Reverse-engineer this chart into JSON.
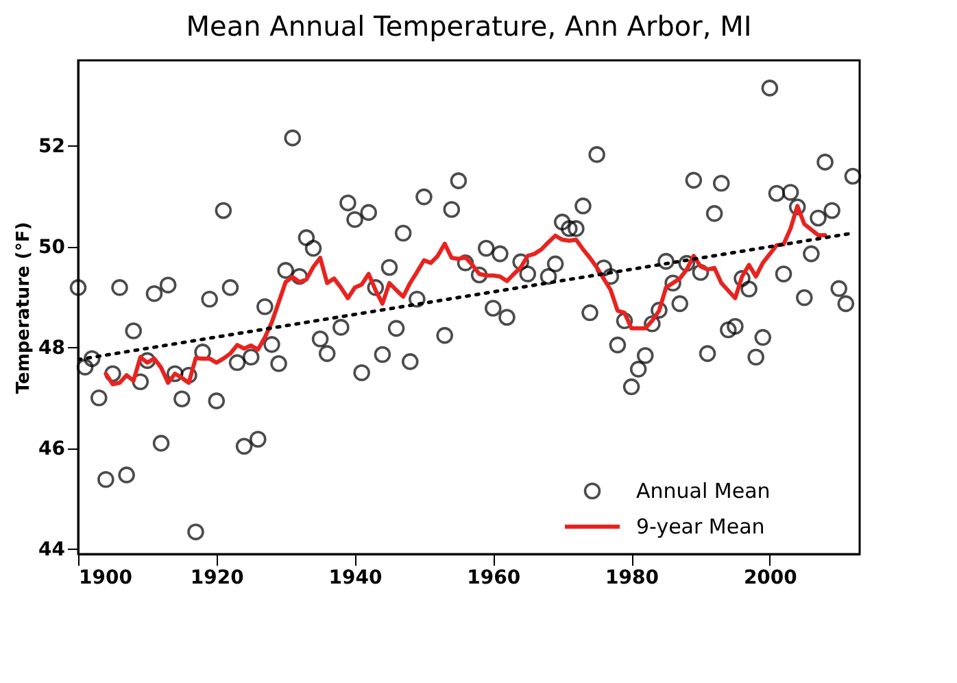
{
  "chart_data": {
    "type": "scatter",
    "title": "Mean Annual Temperature, Ann Arbor, MI",
    "ylabel": "Temperature (°F)",
    "xlim": [
      1900,
      2013
    ],
    "xticks": [
      1900,
      1920,
      1940,
      1960,
      1980,
      2000
    ],
    "ylim": [
      43.9,
      53.7
    ],
    "yticks": [
      44,
      46,
      48,
      50,
      52
    ],
    "grid": false,
    "legend": "bottom right",
    "series": [
      {
        "name": "Annual Mean",
        "marker": "circle",
        "color": "#000000",
        "x": [
          1900,
          1901,
          1902,
          1903,
          1904,
          1905,
          1906,
          1907,
          1908,
          1909,
          1910,
          1911,
          1912,
          1913,
          1914,
          1915,
          1916,
          1917,
          1918,
          1919,
          1920,
          1921,
          1922,
          1923,
          1924,
          1925,
          1926,
          1927,
          1928,
          1929,
          1930,
          1931,
          1932,
          1933,
          1934,
          1935,
          1936,
          1938,
          1939,
          1940,
          1941,
          1942,
          1943,
          1944,
          1945,
          1946,
          1947,
          1948,
          1949,
          1950,
          1953,
          1954,
          1955,
          1956,
          1958,
          1959,
          1960,
          1961,
          1962,
          1964,
          1965,
          1968,
          1969,
          1970,
          1971,
          1972,
          1973,
          1974,
          1975,
          1976,
          1977,
          1978,
          1979,
          1980,
          1981,
          1982,
          1983,
          1984,
          1985,
          1986,
          1987,
          1988,
          1989,
          1990,
          1991,
          1992,
          1993,
          1994,
          1995,
          1996,
          1997,
          1998,
          1999,
          2000,
          2001,
          2002,
          2003,
          2004,
          2005,
          2006,
          2007,
          2008,
          2009,
          2010,
          2011,
          2012
        ],
        "values": [
          49.19,
          47.61,
          47.78,
          47.0,
          45.38,
          47.48,
          49.19,
          45.47,
          48.33,
          47.32,
          47.74,
          49.07,
          46.1,
          49.24,
          47.48,
          46.98,
          47.45,
          44.34,
          47.91,
          48.96,
          46.94,
          50.72,
          49.19,
          47.7,
          46.04,
          47.81,
          46.18,
          48.81,
          48.06,
          47.68,
          49.53,
          52.16,
          49.41,
          50.18,
          49.97,
          48.17,
          47.88,
          48.4,
          50.87,
          50.54,
          47.5,
          50.68,
          49.19,
          47.86,
          49.59,
          48.38,
          50.27,
          47.72,
          48.96,
          50.99,
          48.24,
          50.74,
          51.31,
          49.68,
          49.44,
          49.97,
          48.78,
          49.86,
          48.6,
          49.7,
          49.46,
          49.41,
          49.66,
          50.49,
          50.36,
          50.36,
          50.81,
          48.69,
          51.83,
          49.58,
          49.41,
          48.05,
          48.53,
          47.22,
          47.57,
          47.84,
          48.47,
          48.74,
          49.71,
          49.28,
          48.87,
          49.67,
          51.32,
          49.49,
          47.88,
          50.66,
          51.26,
          48.35,
          48.42,
          49.37,
          49.16,
          47.81,
          48.2,
          53.15,
          51.06,
          49.46,
          51.08,
          50.79,
          48.99,
          49.86,
          50.57,
          51.68,
          50.72,
          49.17,
          48.87,
          51.4
        ]
      },
      {
        "name": "9-year Mean",
        "type": "line",
        "line_style": "solid",
        "color": "#e8231f",
        "x": [
          1904,
          1905,
          1906,
          1907,
          1908,
          1909,
          1910,
          1911,
          1912,
          1913,
          1914,
          1915,
          1916,
          1917,
          1918,
          1919,
          1920,
          1921,
          1922,
          1923,
          1924,
          1925,
          1926,
          1927,
          1928,
          1929,
          1930,
          1931,
          1932,
          1933,
          1934,
          1935,
          1936,
          1937,
          1938,
          1939,
          1940,
          1941,
          1942,
          1943,
          1944,
          1945,
          1946,
          1947,
          1948,
          1949,
          1950,
          1951,
          1952,
          1953,
          1954,
          1955,
          1956,
          1957,
          1958,
          1959,
          1960,
          1961,
          1962,
          1963,
          1964,
          1965,
          1966,
          1967,
          1968,
          1969,
          1970,
          1971,
          1972,
          1973,
          1974,
          1975,
          1977,
          1978,
          1979,
          1980,
          1981,
          1982,
          1983,
          1984,
          1985,
          1987,
          1988,
          1989,
          1990,
          1991,
          1992,
          1993,
          1995,
          1996,
          1997,
          1998,
          1999,
          2001,
          2002,
          2003,
          2004,
          2005,
          2007,
          2008
        ],
        "values": [
          47.48,
          47.27,
          47.3,
          47.45,
          47.34,
          47.81,
          47.7,
          47.78,
          47.6,
          47.3,
          47.48,
          47.4,
          47.3,
          47.79,
          47.78,
          47.78,
          47.7,
          47.78,
          47.88,
          48.05,
          47.98,
          48.04,
          47.96,
          48.2,
          48.5,
          48.9,
          49.3,
          49.4,
          49.3,
          49.35,
          49.6,
          49.78,
          49.28,
          49.37,
          49.19,
          48.98,
          49.19,
          49.25,
          49.46,
          49.14,
          48.87,
          49.28,
          49.14,
          49.01,
          49.28,
          49.5,
          49.73,
          49.68,
          49.82,
          50.06,
          49.78,
          49.76,
          49.79,
          49.64,
          49.46,
          49.43,
          49.43,
          49.41,
          49.32,
          49.46,
          49.59,
          49.82,
          49.86,
          49.95,
          50.09,
          50.22,
          50.14,
          50.12,
          50.14,
          49.95,
          49.78,
          49.59,
          49.14,
          48.73,
          48.69,
          48.38,
          48.38,
          48.38,
          48.53,
          48.73,
          49.19,
          49.37,
          49.55,
          49.82,
          49.61,
          49.55,
          49.58,
          49.28,
          48.98,
          49.41,
          49.64,
          49.41,
          49.68,
          50.03,
          50.05,
          50.36,
          50.81,
          50.45,
          50.23,
          50.23
        ]
      },
      {
        "type": "line",
        "line_style": "dotted",
        "color": "#000000",
        "x": [
          1900,
          2012
        ],
        "values": [
          47.76,
          50.27
        ]
      }
    ]
  }
}
